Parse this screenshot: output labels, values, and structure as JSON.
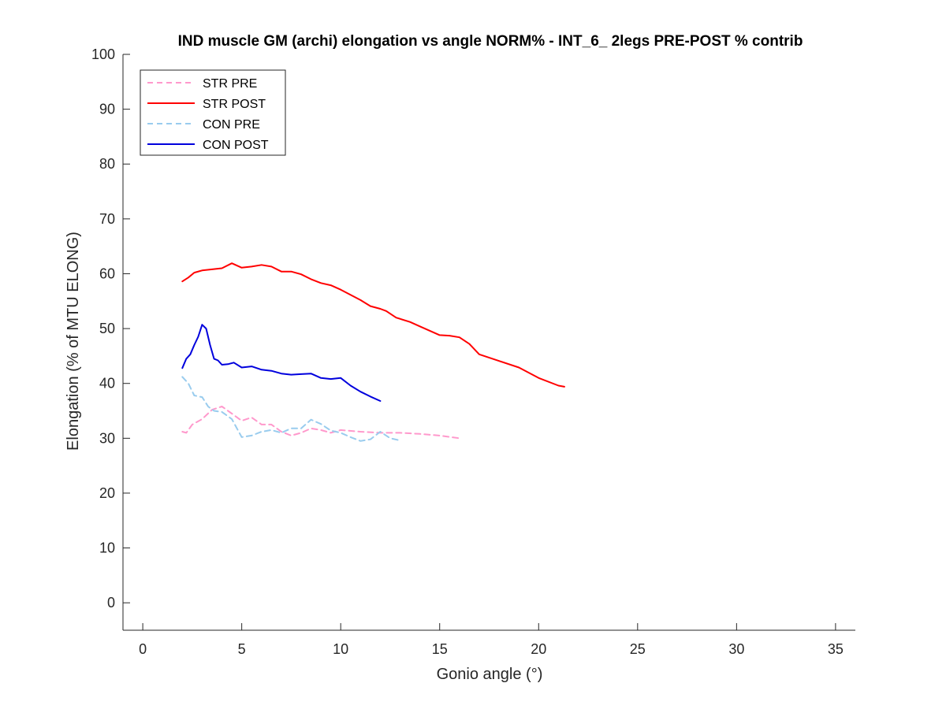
{
  "chart_data": {
    "type": "line",
    "title": "IND muscle GM (archi) elongation vs angle NORM% - INT_6_ 2legs PRE-POST % contrib",
    "xlabel": "Gonio angle (°)",
    "ylabel": "Elongation (% of MTU ELONG)",
    "xlim": [
      -1,
      36
    ],
    "ylim": [
      -5,
      100
    ],
    "xticks": [
      0,
      5,
      10,
      15,
      20,
      25,
      30,
      35
    ],
    "yticks": [
      0,
      10,
      20,
      30,
      40,
      50,
      60,
      70,
      80,
      90,
      100
    ],
    "grid": false,
    "legend_position": "top-left",
    "series": [
      {
        "name": "STR PRE",
        "color": "#ff99cc",
        "dash": "dashed",
        "x": [
          2.0,
          2.2,
          2.5,
          3.0,
          3.5,
          4.0,
          4.5,
          5.0,
          5.5,
          6.0,
          6.5,
          7.0,
          7.5,
          8.0,
          8.5,
          9.0,
          9.5,
          10.0,
          11.0,
          12.0,
          13.0,
          14.0,
          15.0,
          16.0
        ],
        "y": [
          31.2,
          31.0,
          32.5,
          33.5,
          35.2,
          35.8,
          34.5,
          33.2,
          33.8,
          32.5,
          32.5,
          31.2,
          30.5,
          31.0,
          31.8,
          31.5,
          31.0,
          31.5,
          31.2,
          31.0,
          31.0,
          30.8,
          30.5,
          30.0
        ]
      },
      {
        "name": "STR POST",
        "color": "#ff0000",
        "dash": "solid",
        "x": [
          2.0,
          2.3,
          2.6,
          3.0,
          3.5,
          4.0,
          4.5,
          5.0,
          5.5,
          6.0,
          6.5,
          7.0,
          7.5,
          8.0,
          8.5,
          9.0,
          9.5,
          10.0,
          11.0,
          11.5,
          12.0,
          12.3,
          12.8,
          13.5,
          14.0,
          15.0,
          15.5,
          16.0,
          16.5,
          17.0,
          18.0,
          19.0,
          20.0,
          21.0,
          21.3
        ],
        "y": [
          58.6,
          59.3,
          60.2,
          60.6,
          60.8,
          61.0,
          61.9,
          61.1,
          61.3,
          61.6,
          61.3,
          60.4,
          60.4,
          59.9,
          59.0,
          58.3,
          57.9,
          57.1,
          55.2,
          54.1,
          53.6,
          53.2,
          52.0,
          51.2,
          50.4,
          48.8,
          48.7,
          48.4,
          47.2,
          45.3,
          44.1,
          42.9,
          41.0,
          39.6,
          39.4
        ]
      },
      {
        "name": "CON PRE",
        "color": "#99ccee",
        "dash": "dashed",
        "x": [
          2.0,
          2.3,
          2.6,
          3.0,
          3.3,
          3.6,
          4.0,
          4.5,
          5.0,
          5.5,
          6.0,
          6.5,
          7.0,
          7.5,
          8.0,
          8.5,
          9.0,
          9.5,
          10.0,
          10.5,
          11.0,
          11.5,
          12.0,
          12.5,
          13.0
        ],
        "y": [
          41.2,
          40.0,
          37.8,
          37.5,
          35.8,
          35.0,
          34.8,
          33.5,
          30.2,
          30.5,
          31.2,
          31.5,
          31.0,
          31.8,
          31.8,
          33.4,
          32.6,
          31.4,
          31.0,
          30.2,
          29.5,
          29.8,
          31.2,
          30.0,
          29.6
        ]
      },
      {
        "name": "CON POST",
        "color": "#0000dd",
        "dash": "solid",
        "x": [
          2.0,
          2.2,
          2.4,
          2.6,
          2.8,
          3.0,
          3.2,
          3.4,
          3.6,
          3.8,
          4.0,
          4.3,
          4.6,
          5.0,
          5.5,
          6.0,
          6.5,
          7.0,
          7.5,
          8.0,
          8.5,
          9.0,
          9.5,
          10.0,
          10.5,
          11.0,
          11.5,
          12.0
        ],
        "y": [
          42.8,
          44.5,
          45.3,
          47.0,
          48.5,
          50.7,
          50.0,
          47.0,
          44.5,
          44.2,
          43.4,
          43.5,
          43.8,
          42.9,
          43.1,
          42.5,
          42.3,
          41.8,
          41.6,
          41.7,
          41.8,
          41.0,
          40.8,
          41.0,
          39.6,
          38.5,
          37.6,
          36.8
        ]
      }
    ]
  }
}
